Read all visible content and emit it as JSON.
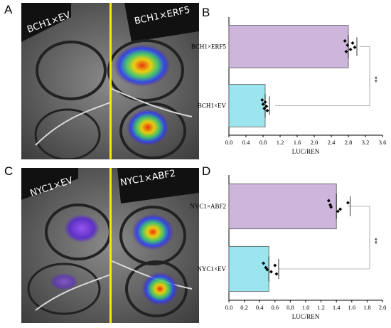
{
  "panels": {
    "A": {
      "letter": "A",
      "left_label": "BCH1×EV",
      "right_label": "BCH1×ERF5"
    },
    "B": {
      "letter": "B"
    },
    "C": {
      "letter": "C",
      "left_label": "NYC1×EV",
      "right_label": "NYC1×ABF2"
    },
    "D": {
      "letter": "D"
    }
  },
  "colors": {
    "bar_top": "#cdb5dc",
    "bar_bottom": "#9be6ee",
    "divider": "#ffe600"
  },
  "chart_data": [
    {
      "type": "bar",
      "orientation": "horizontal",
      "categories": [
        "BCH1×ERF5",
        "BCH1×EV"
      ],
      "values": [
        2.8,
        0.85
      ],
      "points": [
        [
          2.72,
          2.78,
          2.85,
          2.9,
          2.95,
          2.75
        ],
        [
          0.78,
          0.8,
          0.83,
          0.85,
          0.88,
          0.9
        ]
      ],
      "xlabel": "LUC/REN",
      "xlim": [
        0.0,
        3.6
      ],
      "xticks": [
        "0.0",
        "0.4",
        "0.8",
        "1.2",
        "1.6",
        "2.0",
        "2.4",
        "2.8",
        "3.2",
        "3.6"
      ],
      "significance": "**"
    },
    {
      "type": "bar",
      "orientation": "horizontal",
      "categories": [
        "NYC1×ABF2",
        "NYC1×EV"
      ],
      "values": [
        1.4,
        0.52
      ],
      "points": [
        [
          1.3,
          1.32,
          1.45,
          1.55,
          1.33,
          1.42
        ],
        [
          0.45,
          0.48,
          0.55,
          0.6,
          0.5,
          0.62
        ]
      ],
      "xlabel": "LUC/REN",
      "xlim": [
        0.0,
        2.0
      ],
      "xticks": [
        "0.0",
        "0.2",
        "0.4",
        "0.6",
        "0.8",
        "1.0",
        "1.2",
        "1.4",
        "1.6",
        "1.8",
        "2.0"
      ],
      "significance": "**"
    }
  ]
}
